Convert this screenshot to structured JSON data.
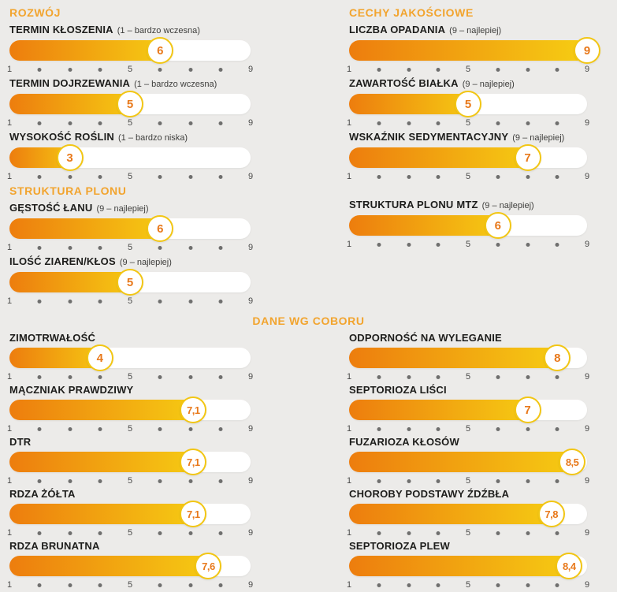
{
  "colors": {
    "bg": "#ECEBE9",
    "accent": "#F2A42E",
    "bar_start": "#ED7D0E",
    "bar_end": "#F6CE13",
    "ring": "#F2C614",
    "value": "#E8791B",
    "label": "#1D1D1B",
    "note": "#3E3E3C",
    "axis_dot": "#6F6F6E",
    "axis_text": "#4A4A49"
  },
  "chart_data": {
    "type": "bar",
    "orientation": "horizontal",
    "scale_min": 1,
    "scale_max": 9,
    "axis_labeled_ticks": [
      1,
      5,
      9
    ],
    "center_title": "DANE WG COBORU",
    "sections": [
      {
        "key": "rozwoj",
        "title": "ROZWÓJ",
        "column": "left-top",
        "items": [
          {
            "label": "TERMIN KŁOSZENIA",
            "note": "(1 – bardzo wczesna)",
            "value": 6,
            "display": "6"
          },
          {
            "label": "TERMIN DOJRZEWANIA",
            "note": "(1 – bardzo wczesna)",
            "value": 5,
            "display": "5"
          },
          {
            "label": "WYSOKOŚĆ ROŚLIN",
            "note": "(1 – bardzo niska)",
            "value": 3,
            "display": "3"
          }
        ]
      },
      {
        "key": "cechy",
        "title": "CECHY JAKOŚCIOWE",
        "column": "right-top",
        "items": [
          {
            "label": "LICZBA OPADANIA",
            "note": "(9 – najlepiej)",
            "value": 9,
            "display": "9"
          },
          {
            "label": "ZAWARTOŚĆ BIAŁKA",
            "note": "(9 – najlepiej)",
            "value": 5,
            "display": "5"
          },
          {
            "label": "WSKAŹNIK SEDYMENTACYJNY",
            "note": "(9 – najlepiej)",
            "value": 7,
            "display": "7"
          }
        ]
      },
      {
        "key": "struktura",
        "title": "STRUKTURA PLONU",
        "column": "left-top",
        "items": [
          {
            "label": "GĘSTOŚĆ ŁANU",
            "note": "(9 – najlepiej)",
            "value": 6,
            "display": "6"
          },
          {
            "label": "ILOŚĆ ZIAREN/KŁOS",
            "note": "(9 – najlepiej)",
            "value": 5,
            "display": "5"
          }
        ]
      },
      {
        "key": "mtz",
        "title": "",
        "column": "right-top",
        "items": [
          {
            "label": "STRUKTURA PLONU MTZ",
            "note": "(9 – najlepiej)",
            "value": 6,
            "display": "6"
          }
        ]
      },
      {
        "key": "coboru-left",
        "title": "",
        "column": "left-bottom",
        "items": [
          {
            "label": "ZIMOTRWAŁOŚĆ",
            "note": "",
            "value": 4,
            "display": "4"
          },
          {
            "label": "MĄCZNIAK PRAWDZIWY",
            "note": "",
            "value": 7.1,
            "display": "7,1"
          },
          {
            "label": "DTR",
            "note": "",
            "value": 7.1,
            "display": "7,1"
          },
          {
            "label": "RDZA ŻÓŁTA",
            "note": "",
            "value": 7.1,
            "display": "7,1"
          },
          {
            "label": "RDZA BRUNATNA",
            "note": "",
            "value": 7.6,
            "display": "7,6"
          }
        ]
      },
      {
        "key": "coboru-right",
        "title": "",
        "column": "right-bottom",
        "items": [
          {
            "label": "ODPORNOŚĆ NA WYLEGANIE",
            "note": "",
            "value": 8,
            "display": "8"
          },
          {
            "label": "SEPTORIOZA LIŚCI",
            "note": "",
            "value": 7,
            "display": "7"
          },
          {
            "label": "FUZARIOZA KŁOSÓW",
            "note": "",
            "value": 8.5,
            "display": "8,5"
          },
          {
            "label": "CHOROBY PODSTAWY ŹDŹBŁA",
            "note": "",
            "value": 7.8,
            "display": "7,8"
          },
          {
            "label": "SEPTORIOZA PLEW",
            "note": "",
            "value": 8.4,
            "display": "8,4"
          }
        ]
      }
    ]
  }
}
